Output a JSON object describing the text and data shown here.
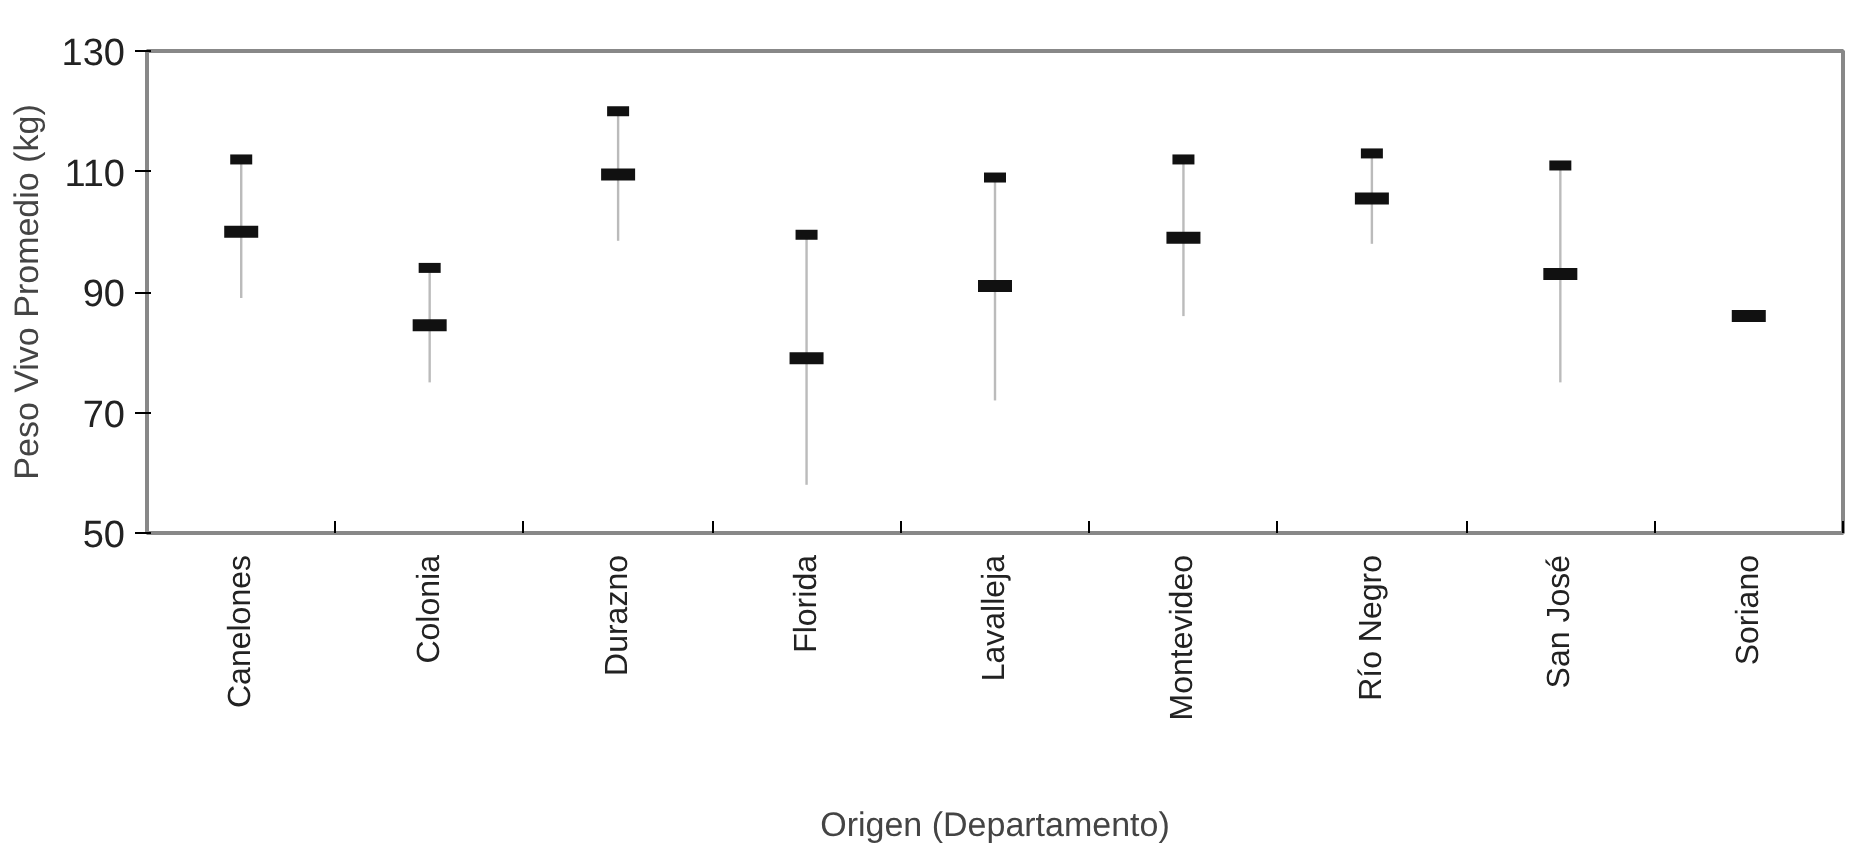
{
  "chart_data": {
    "type": "scatter",
    "xlabel": "Origen (Departamento)",
    "ylabel": "Peso Vivo Promedio (kg)",
    "categories": [
      "Canelones",
      "Colonia",
      "Durazno",
      "Florida",
      "Lavalleja",
      "Montevideo",
      "Río Negro",
      "San José",
      "Soriano"
    ],
    "series": [
      {
        "color": "#111111",
        "values": [
          100,
          84.5,
          109.5,
          79,
          91,
          99,
          105.5,
          93,
          86
        ],
        "errors": [
          [
            89,
            112
          ],
          [
            75,
            94
          ],
          [
            98.5,
            120
          ],
          [
            58,
            99.5
          ],
          [
            72,
            109
          ],
          [
            86,
            112
          ],
          [
            98,
            113
          ],
          [
            75,
            111
          ],
          null
        ]
      },
      {
        "color": "#111111",
        "values": [
          112,
          94,
          120,
          99.5,
          109,
          112,
          113,
          111,
          null
        ]
      }
    ],
    "ylim": [
      50,
      130
    ],
    "yticks": [
      50,
      70,
      90,
      110,
      130
    ],
    "grid": false
  }
}
